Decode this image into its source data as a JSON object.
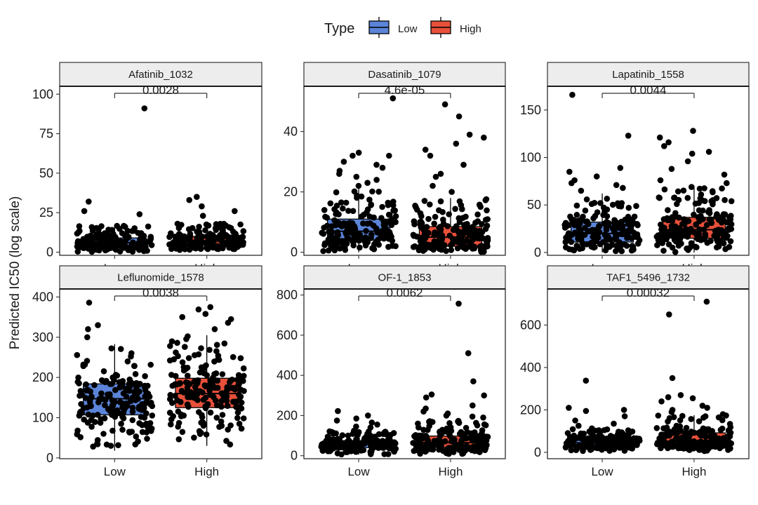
{
  "legend": {
    "title": "Type",
    "entries": [
      {
        "label": "Low",
        "color": "#5b84d9"
      },
      {
        "label": "High",
        "color": "#e8503a"
      }
    ]
  },
  "ylabel": "Predicted IC50 (log scale)",
  "chart_data": [
    {
      "type": "boxplot",
      "title": "Afatinib_1032",
      "categories": [
        "Low",
        "High"
      ],
      "ylim": [
        -2,
        105
      ],
      "yticks": [
        0,
        25,
        50,
        75,
        100
      ],
      "pvalue": "0.0028",
      "series": [
        {
          "name": "Low",
          "q1": 3,
          "median": 6,
          "q3": 9,
          "whisker_low": 0,
          "whisker_high": 17,
          "outliers": [
            91,
            32,
            26,
            24
          ],
          "n_points": 180
        },
        {
          "name": "High",
          "q1": 5,
          "median": 7,
          "q3": 10,
          "whisker_low": 1,
          "whisker_high": 18,
          "outliers": [
            35,
            33,
            29,
            26,
            23
          ],
          "n_points": 180
        }
      ]
    },
    {
      "type": "boxplot",
      "title": "Dasatinib_1079",
      "categories": [
        "Low",
        "High"
      ],
      "ylim": [
        -1,
        55
      ],
      "yticks": [
        0,
        20,
        40
      ],
      "pvalue": "4.6e-05",
      "series": [
        {
          "name": "Low",
          "q1": 4,
          "median": 7,
          "q3": 11,
          "whisker_low": 0,
          "whisker_high": 21,
          "outliers": [
            51,
            33,
            32,
            32,
            30,
            29,
            28,
            27,
            26,
            25,
            24,
            23,
            22
          ],
          "n_points": 180
        },
        {
          "name": "High",
          "q1": 2,
          "median": 5,
          "q3": 8.5,
          "whisker_low": 0,
          "whisker_high": 18,
          "outliers": [
            49,
            45,
            39,
            38,
            36,
            34,
            32,
            29,
            26,
            25,
            22,
            20
          ],
          "n_points": 180
        }
      ]
    },
    {
      "type": "boxplot",
      "title": "Lapatinib_1558",
      "categories": [
        "Low",
        "High"
      ],
      "ylim": [
        -3,
        175
      ],
      "yticks": [
        0,
        50,
        100,
        150
      ],
      "pvalue": "0.0044",
      "series": [
        {
          "name": "Low",
          "q1": 11,
          "median": 20,
          "q3": 32,
          "whisker_low": 0,
          "whisker_high": 62,
          "outliers": [
            166,
            123,
            89,
            85,
            80,
            76,
            73,
            71,
            68,
            65
          ],
          "n_points": 180
        },
        {
          "name": "High",
          "q1": 15,
          "median": 24,
          "q3": 37,
          "whisker_low": 0,
          "whisker_high": 70,
          "outliers": [
            128,
            121,
            116,
            112,
            106,
            104,
            96,
            88,
            82,
            76,
            73
          ],
          "n_points": 180
        }
      ]
    },
    {
      "type": "boxplot",
      "title": "Leflunomide_1578",
      "categories": [
        "Low",
        "High"
      ],
      "ylim": [
        -2,
        420
      ],
      "yticks": [
        0,
        100,
        200,
        300,
        400
      ],
      "pvalue": "0.0038",
      "series": [
        {
          "name": "Low",
          "q1": 107,
          "median": 147,
          "q3": 184,
          "whisker_low": 18,
          "whisker_high": 283,
          "outliers": [
            386,
            330,
            320,
            300
          ],
          "n_points": 180
        },
        {
          "name": "High",
          "q1": 125,
          "median": 160,
          "q3": 198,
          "whisker_low": 30,
          "whisker_high": 305,
          "outliers": [
            375,
            369,
            358,
            350,
            345,
            336,
            320
          ],
          "n_points": 180
        }
      ]
    },
    {
      "type": "boxplot",
      "title": "OF-1_1853",
      "categories": [
        "Low",
        "High"
      ],
      "ylim": [
        -15,
        830
      ],
      "yticks": [
        0,
        200,
        400,
        600,
        800
      ],
      "pvalue": "0.0062",
      "series": [
        {
          "name": "Low",
          "q1": 40,
          "median": 58,
          "q3": 75,
          "whisker_low": 5,
          "whisker_high": 125,
          "outliers": [
            222,
            200,
            185,
            175,
            165,
            155,
            145,
            140
          ],
          "n_points": 180
        },
        {
          "name": "High",
          "q1": 42,
          "median": 65,
          "q3": 98,
          "whisker_low": 5,
          "whisker_high": 175,
          "outliers": [
            757,
            510,
            370,
            305,
            300,
            290,
            250,
            235,
            220,
            210,
            200,
            195,
            190
          ],
          "n_points": 180
        }
      ]
    },
    {
      "type": "boxplot",
      "title": "TAF1_5496_1732",
      "categories": [
        "Low",
        "High"
      ],
      "ylim": [
        -30,
        770
      ],
      "yticks": [
        0,
        200,
        400,
        600
      ],
      "pvalue": "0.00032",
      "series": [
        {
          "name": "Low",
          "q1": 30,
          "median": 45,
          "q3": 65,
          "whisker_low": 5,
          "whisker_high": 115,
          "outliers": [
            338,
            210,
            200,
            195,
            170,
            150,
            135,
            125
          ],
          "n_points": 180
        },
        {
          "name": "High",
          "q1": 32,
          "median": 52,
          "q3": 92,
          "whisker_low": 5,
          "whisker_high": 175,
          "outliers": [
            710,
            650,
            350,
            270,
            260,
            255,
            240,
            220,
            210,
            200,
            190,
            180
          ],
          "n_points": 180
        }
      ]
    }
  ]
}
